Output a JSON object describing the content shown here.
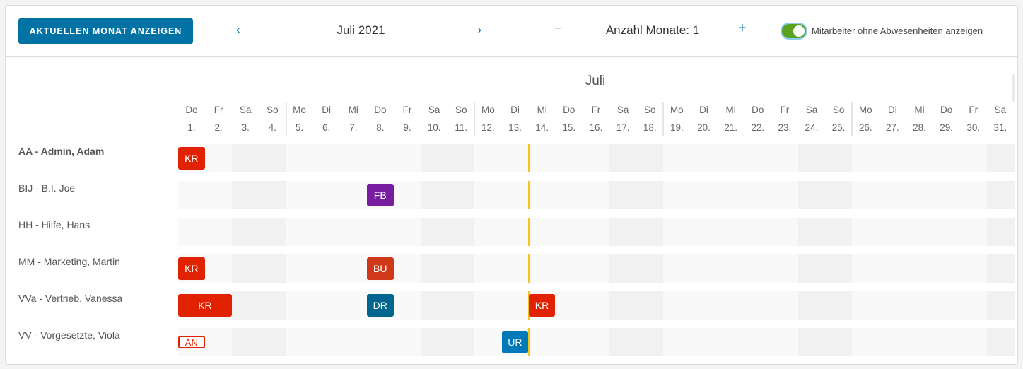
{
  "toolbar": {
    "current_month_label": "AKTUELLEN MONAT ANZEIGEN",
    "prev_icon": "‹",
    "next_icon": "›",
    "month_label": "Juli 2021",
    "minus_label": "−",
    "month_count_label": "Anzahl Monate: 1",
    "plus_label": "+",
    "toggle_label": "Mitarbeiter ohne Abwesenheiten anzeigen",
    "toggle_on": true
  },
  "calendar": {
    "month": "Juli",
    "today": 13,
    "days": [
      [
        "Do",
        "1."
      ],
      [
        "Fr",
        "2."
      ],
      [
        "Sa",
        "3."
      ],
      [
        "So",
        "4."
      ],
      [
        "Mo",
        "5."
      ],
      [
        "Di",
        "6."
      ],
      [
        "Mi",
        "7."
      ],
      [
        "Do",
        "8."
      ],
      [
        "Fr",
        "9."
      ],
      [
        "Sa",
        "10."
      ],
      [
        "So",
        "11."
      ],
      [
        "Mo",
        "12."
      ],
      [
        "Di",
        "13."
      ],
      [
        "Mi",
        "14."
      ],
      [
        "Do",
        "15."
      ],
      [
        "Fr",
        "16."
      ],
      [
        "Sa",
        "17."
      ],
      [
        "So",
        "18."
      ],
      [
        "Mo",
        "19."
      ],
      [
        "Di",
        "20."
      ],
      [
        "Mi",
        "21."
      ],
      [
        "Do",
        "22."
      ],
      [
        "Fr",
        "23."
      ],
      [
        "Sa",
        "24."
      ],
      [
        "So",
        "25."
      ],
      [
        "Mo",
        "26."
      ],
      [
        "Di",
        "27."
      ],
      [
        "Mi",
        "28."
      ],
      [
        "Do",
        "29."
      ],
      [
        "Fr",
        "30."
      ],
      [
        "Sa",
        "31."
      ]
    ],
    "employees": [
      {
        "name": "AA - Admin, Adam",
        "bold": true,
        "absences": [
          {
            "code": "KR",
            "start": 1,
            "end": 1,
            "color": "#e12200"
          }
        ]
      },
      {
        "name": "BIJ - B.I. Joe",
        "absences": [
          {
            "code": "FB",
            "start": 8,
            "end": 8,
            "color": "#781da0"
          }
        ]
      },
      {
        "name": "HH - Hilfe, Hans",
        "absences": []
      },
      {
        "name": "MM - Marketing, Martin",
        "absences": [
          {
            "code": "KR",
            "start": 1,
            "end": 1,
            "color": "#e12200"
          },
          {
            "code": "BU",
            "start": 8,
            "end": 8,
            "color": "#d0381a"
          }
        ]
      },
      {
        "name": "VVa - Vertrieb, Vanessa",
        "absences": [
          {
            "code": "KR",
            "start": 1,
            "end": 2,
            "color": "#e12200"
          },
          {
            "code": "DR",
            "start": 8,
            "end": 8,
            "color": "#00668f"
          },
          {
            "code": "KR",
            "start": 14,
            "end": 14,
            "color": "#e12200"
          }
        ]
      },
      {
        "name": "VV - Vorgesetzte, Viola",
        "absences": [
          {
            "code": "AN",
            "start": 1,
            "end": 1,
            "color": "#e12200",
            "outline": true
          },
          {
            "code": "UR",
            "start": 13,
            "end": 13,
            "color": "#0079b8"
          }
        ]
      }
    ]
  },
  "colors": {
    "weekend": "#f1f1f1",
    "weekday": "#f9f9f9",
    "today_line": "#f5c31a",
    "accent": "#0072a3"
  }
}
